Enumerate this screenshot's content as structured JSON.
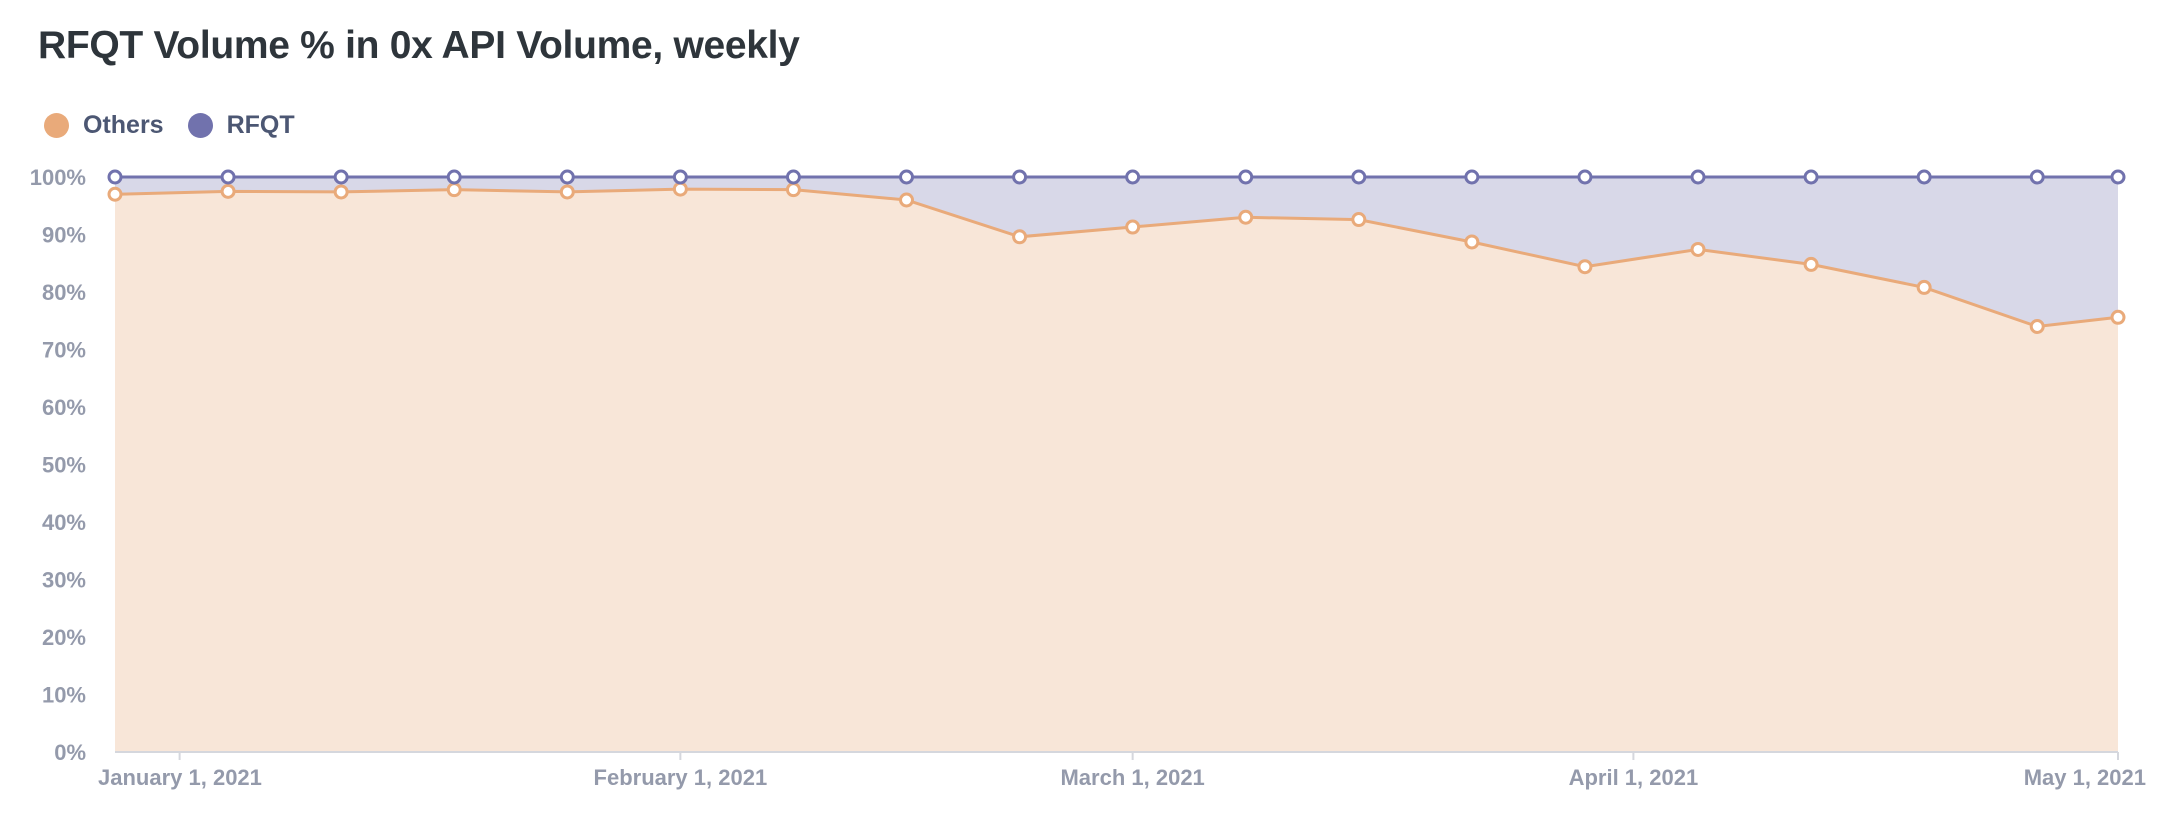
{
  "title": "RFQT Volume % in 0x API Volume, weekly",
  "legend": [
    {
      "label": "Others",
      "color": "#e9aa7a"
    },
    {
      "label": "RFQT",
      "color": "#7172ad"
    }
  ],
  "chart_data": {
    "type": "area",
    "stacked": true,
    "normalized": true,
    "title": "RFQT Volume % in 0x API Volume, weekly",
    "xlabel": "",
    "ylabel": "",
    "x": [
      "2020-12-28",
      "2021-01-04",
      "2021-01-11",
      "2021-01-18",
      "2021-01-25",
      "2021-02-01",
      "2021-02-08",
      "2021-02-15",
      "2021-02-22",
      "2021-03-01",
      "2021-03-08",
      "2021-03-15",
      "2021-03-22",
      "2021-03-29",
      "2021-04-05",
      "2021-04-12",
      "2021-04-19",
      "2021-04-26",
      "2021-05-01"
    ],
    "x_ticks": [
      {
        "date": "2021-01-01",
        "label": "January 1, 2021"
      },
      {
        "date": "2021-02-01",
        "label": "February 1, 2021"
      },
      {
        "date": "2021-03-01",
        "label": "March 1, 2021"
      },
      {
        "date": "2021-04-01",
        "label": "April 1, 2021"
      },
      {
        "date": "2021-05-01",
        "label": "May 1, 2021"
      }
    ],
    "series": [
      {
        "name": "Others",
        "color": "#e9aa7a",
        "values": [
          97.0,
          97.5,
          97.4,
          97.8,
          97.4,
          97.9,
          97.8,
          96.0,
          89.6,
          91.3,
          93.0,
          92.6,
          88.7,
          84.4,
          87.4,
          84.8,
          80.8,
          74.0,
          75.6
        ]
      },
      {
        "name": "RFQT",
        "color": "#7172ad",
        "values": [
          3.0,
          2.5,
          2.6,
          2.2,
          2.6,
          2.1,
          2.2,
          4.0,
          10.4,
          8.7,
          7.0,
          7.4,
          11.3,
          15.6,
          12.6,
          15.2,
          19.2,
          26.0,
          24.4
        ]
      }
    ],
    "ylim": [
      0,
      100
    ],
    "y_ticks": [
      "0%",
      "10%",
      "20%",
      "30%",
      "40%",
      "50%",
      "60%",
      "70%",
      "80%",
      "90%",
      "100%"
    ],
    "grid": true,
    "legend_position": "top-left"
  }
}
